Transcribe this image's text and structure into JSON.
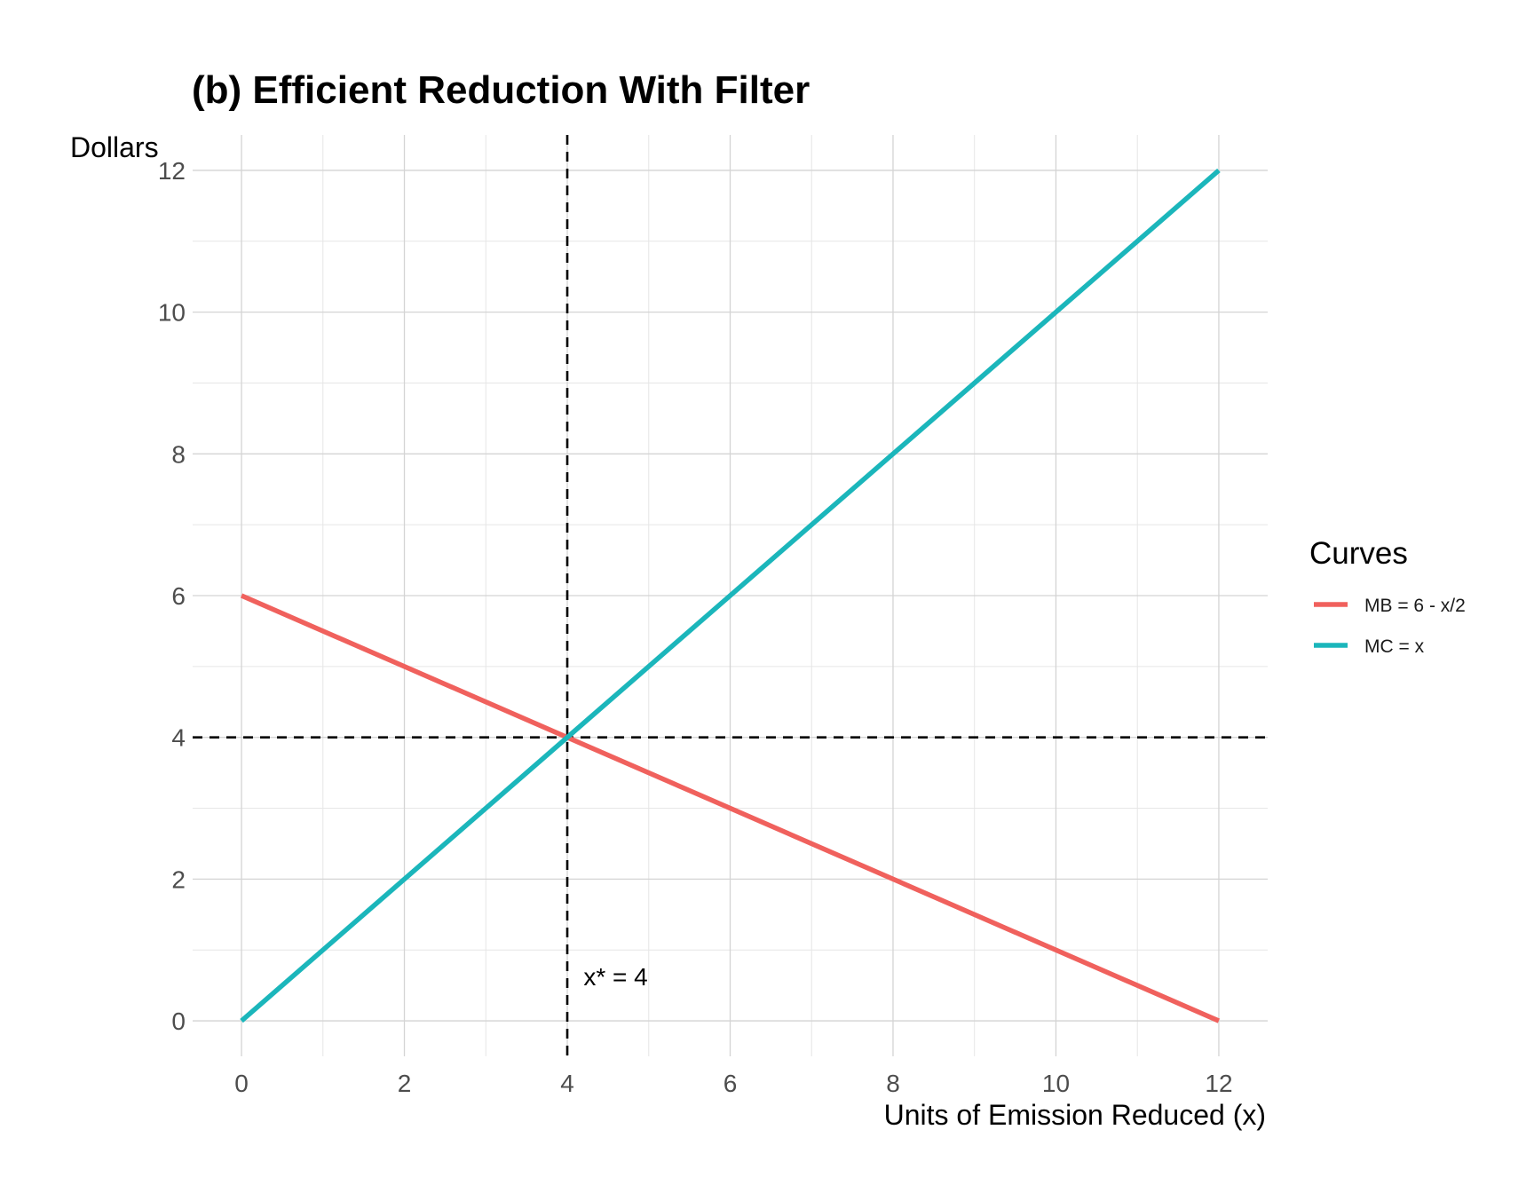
{
  "chart_data": {
    "type": "line",
    "title": "(b) Efficient Reduction With Filter",
    "xlabel": "Units of Emission Reduced (x)",
    "ylabel": "Dollars",
    "xlim": [
      -0.6,
      12.6
    ],
    "ylim": [
      -0.5,
      12.5
    ],
    "x_ticks": [
      0,
      2,
      4,
      6,
      8,
      10,
      12
    ],
    "y_ticks": [
      0,
      2,
      4,
      6,
      8,
      10,
      12
    ],
    "x_tick_labels": [
      "0",
      "2",
      "4",
      "6",
      "8",
      "10",
      "12"
    ],
    "y_tick_labels": [
      "0",
      "2",
      "4",
      "6",
      "8",
      "10",
      "12"
    ],
    "grid": true,
    "series": [
      {
        "name": "MB = 6 - x/2",
        "color": "#f0615d",
        "x": [
          0,
          12
        ],
        "y": [
          6,
          0
        ]
      },
      {
        "name": "MC = x",
        "color": "#1bb6bb",
        "x": [
          0,
          12
        ],
        "y": [
          0,
          12
        ]
      }
    ],
    "reference_lines": [
      {
        "orientation": "vertical",
        "value": 4,
        "style": "dashed",
        "color": "#000000"
      },
      {
        "orientation": "horizontal",
        "value": 4,
        "style": "dashed",
        "color": "#000000"
      }
    ],
    "annotations": [
      {
        "text": "x* = 4",
        "x": 4.2,
        "y": 0.5
      }
    ],
    "legend": {
      "title": "Curves",
      "placement": "right"
    }
  }
}
